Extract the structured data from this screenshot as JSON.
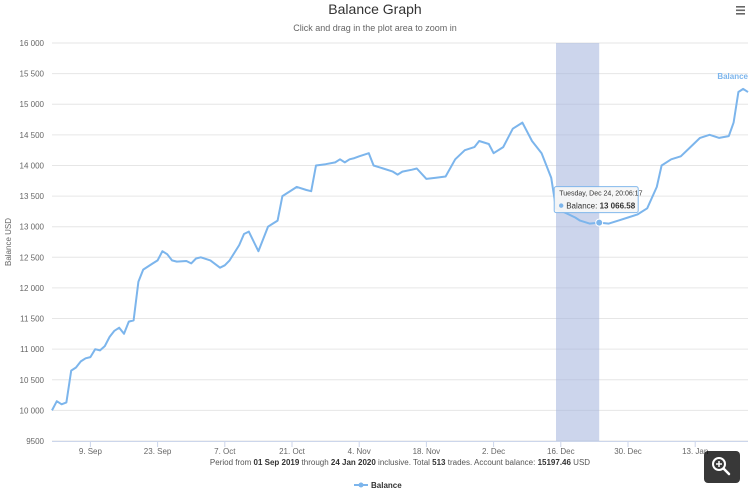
{
  "chart_data": {
    "type": "line",
    "title": "Balance Graph",
    "subtitle": "Click and drag in the plot area to zoom in",
    "ylabel": "Balance USD",
    "ylim": [
      9500,
      16000
    ],
    "yticks": [
      "16 000",
      "15 500",
      "15 000",
      "14 500",
      "14 000",
      "13 500",
      "13 000",
      "12 500",
      "12 000",
      "11 500",
      "11 000",
      "10 500",
      "10 000",
      "9500"
    ],
    "xlim": [
      "2019-09-01",
      "2020-01-24"
    ],
    "xticks": [
      {
        "date": "2019-09-09",
        "label": "9. Sep"
      },
      {
        "date": "2019-09-23",
        "label": "23. Sep"
      },
      {
        "date": "2019-10-07",
        "label": "7. Oct"
      },
      {
        "date": "2019-10-21",
        "label": "21. Oct"
      },
      {
        "date": "2019-11-04",
        "label": "4. Nov"
      },
      {
        "date": "2019-11-18",
        "label": "18. Nov"
      },
      {
        "date": "2019-12-02",
        "label": "2. Dec"
      },
      {
        "date": "2019-12-16",
        "label": "16. Dec"
      },
      {
        "date": "2019-12-30",
        "label": "30. Dec"
      },
      {
        "date": "2020-01-13",
        "label": "13. Jan"
      }
    ],
    "grid": true,
    "legend_position": "bottom-center",
    "series": [
      {
        "name": "Balance",
        "color": "#7cb5ec",
        "x": [
          "2019-09-01",
          "2019-09-02",
          "2019-09-03",
          "2019-09-04",
          "2019-09-05",
          "2019-09-06",
          "2019-09-07",
          "2019-09-08",
          "2019-09-09",
          "2019-09-10",
          "2019-09-11",
          "2019-09-12",
          "2019-09-13",
          "2019-09-14",
          "2019-09-15",
          "2019-09-16",
          "2019-09-17",
          "2019-09-18",
          "2019-09-19",
          "2019-09-20",
          "2019-09-21",
          "2019-09-22",
          "2019-09-23",
          "2019-09-24",
          "2019-09-25",
          "2019-09-26",
          "2019-09-27",
          "2019-09-29",
          "2019-09-30",
          "2019-10-01",
          "2019-10-02",
          "2019-10-04",
          "2019-10-06",
          "2019-10-07",
          "2019-10-08",
          "2019-10-10",
          "2019-10-11",
          "2019-10-12",
          "2019-10-14",
          "2019-10-16",
          "2019-10-17",
          "2019-10-18",
          "2019-10-19",
          "2019-10-21",
          "2019-10-22",
          "2019-10-24",
          "2019-10-25",
          "2019-10-26",
          "2019-10-28",
          "2019-10-30",
          "2019-10-31",
          "2019-11-01",
          "2019-11-02",
          "2019-11-03",
          "2019-11-04",
          "2019-11-06",
          "2019-11-07",
          "2019-11-09",
          "2019-11-11",
          "2019-11-12",
          "2019-11-13",
          "2019-11-15",
          "2019-11-16",
          "2019-11-18",
          "2019-11-20",
          "2019-11-22",
          "2019-11-24",
          "2019-11-26",
          "2019-11-28",
          "2019-11-29",
          "2019-12-01",
          "2019-12-02",
          "2019-12-04",
          "2019-12-06",
          "2019-12-08",
          "2019-12-10",
          "2019-12-12",
          "2019-12-14",
          "2019-12-15",
          "2019-12-19",
          "2019-12-20",
          "2019-12-22",
          "2019-12-24",
          "2019-12-26",
          "2019-12-28",
          "2019-12-30",
          "2020-01-01",
          "2020-01-03",
          "2020-01-05",
          "2020-01-06",
          "2020-01-08",
          "2020-01-10",
          "2020-01-12",
          "2020-01-14",
          "2020-01-16",
          "2020-01-18",
          "2020-01-20",
          "2020-01-21",
          "2020-01-22",
          "2020-01-23",
          "2020-01-24"
        ],
        "values": [
          10000,
          10150,
          10100,
          10130,
          10650,
          10700,
          10800,
          10850,
          10870,
          11000,
          10980,
          11050,
          11200,
          11300,
          11350,
          11250,
          11450,
          11470,
          12100,
          12300,
          12350,
          12400,
          12450,
          12600,
          12550,
          12450,
          12430,
          12440,
          12400,
          12480,
          12500,
          12450,
          12330,
          12370,
          12450,
          12700,
          12880,
          12920,
          12600,
          13000,
          13050,
          13100,
          13500,
          13600,
          13650,
          13600,
          13580,
          14000,
          14020,
          14050,
          14100,
          14050,
          14100,
          14120,
          14150,
          14200,
          14000,
          13950,
          13900,
          13850,
          13900,
          13930,
          13950,
          13780,
          13800,
          13820,
          14100,
          14250,
          14300,
          14400,
          14350,
          14200,
          14300,
          14600,
          14700,
          14400,
          14200,
          13800,
          13300,
          13150,
          13100,
          13050,
          13066.58,
          13050,
          13100,
          13150,
          13200,
          13300,
          13650,
          14000,
          14100,
          14150,
          14300,
          14450,
          14500,
          14450,
          14480,
          14700,
          15200,
          15250,
          15197.46
        ]
      }
    ],
    "highlight_band": {
      "from": "2019-12-15",
      "to": "2019-12-24"
    },
    "tooltip": {
      "date_text": "Tuesday, Dec 24, 20:06:17",
      "series_name": "Balance",
      "value_text": "13 066.58",
      "point": {
        "x": "2019-12-24",
        "y": 13066.58
      }
    },
    "period_text": {
      "prefix": "Period from ",
      "from": "01 Sep 2019",
      "through_label": " through ",
      "to": "24 Jan 2020",
      "middle": " inclusive. Total ",
      "trades": "513",
      "trades_label": " trades. Account balance: ",
      "balance": "15197.46",
      "currency": " USD"
    }
  },
  "ui": {
    "menu_icon": "hamburger-icon",
    "zoom_icon": "magnifier-zoom-icon"
  }
}
